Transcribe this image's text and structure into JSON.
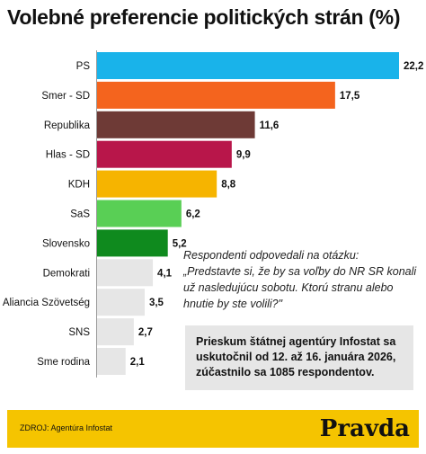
{
  "title": "Volebné preferencie politických strán (%)",
  "chart_data": {
    "type": "bar",
    "orientation": "horizontal",
    "title": "Volebné preferencie politických strán (%)",
    "categories": [
      "PS",
      "Smer - SD",
      "Republika",
      "Hlas - SD",
      "KDH",
      "SaS",
      "Slovensko",
      "Demokrati",
      "Aliancia Szövetség",
      "SNS",
      "Sme rodina"
    ],
    "values": [
      22.2,
      17.5,
      11.6,
      9.9,
      8.8,
      6.2,
      5.2,
      4.1,
      3.5,
      2.7,
      2.1
    ],
    "value_labels": [
      "22,2",
      "17,5",
      "11,6",
      "9,9",
      "8,8",
      "6,2",
      "5,2",
      "4,1",
      "3,5",
      "2,7",
      "2,1"
    ],
    "colors": [
      "#19b3ea",
      "#f4641e",
      "#6e3a36",
      "#b8164a",
      "#f6b400",
      "#59cf55",
      "#0f8a1e",
      "#e6e6e6",
      "#e6e6e6",
      "#e6e6e6",
      "#e6e6e6"
    ],
    "xlim": [
      0,
      22.2
    ],
    "grid": false,
    "legend": "none"
  },
  "note": "Respondenti odpovedali na otázku: „Predstavte si, že by sa voľby do NR SR konali už nasledujúcu sobotu. Ktorú stranu alebo hnutie by ste volili?\"",
  "survey": "Prieskum štátnej agentúry Infostat sa uskutočnil od 12. až 16. januára 2026, zúčastnilo sa 1085 respondentov.",
  "footer": {
    "source": "ZDROJ: Agentúra Infostat",
    "logo": "Pravda"
  }
}
